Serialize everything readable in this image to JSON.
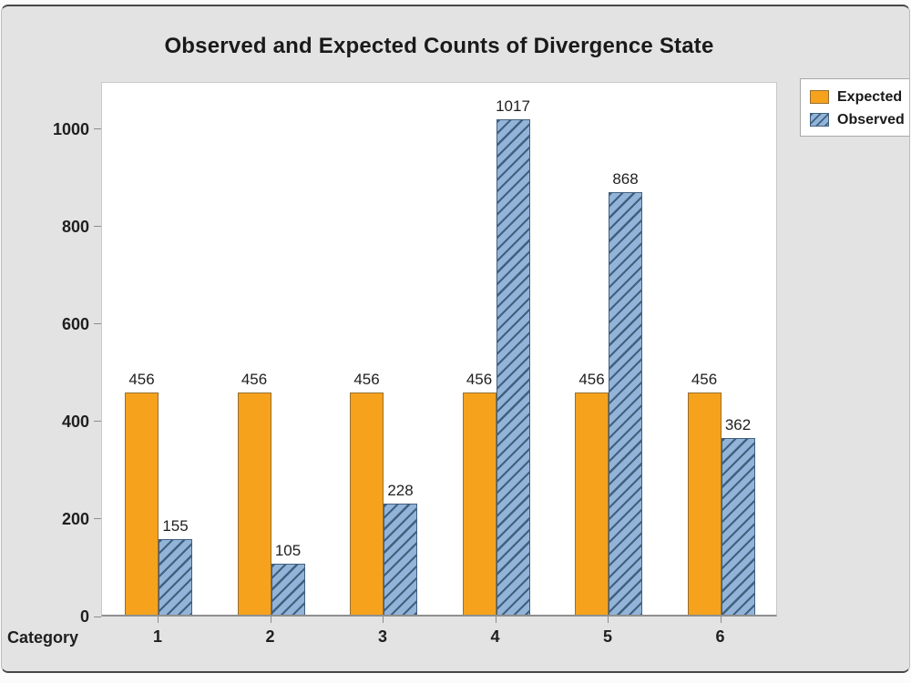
{
  "chart_data": {
    "type": "bar",
    "title": "Observed and Expected Counts of Divergence State",
    "xlabel": "Category",
    "ylabel": "",
    "categories": [
      "1",
      "2",
      "3",
      "4",
      "5",
      "6"
    ],
    "series": [
      {
        "name": "Expected",
        "values": [
          456,
          456,
          456,
          456,
          456,
          456
        ],
        "fill": "#F6A21D",
        "border": "#957032",
        "pattern": "solid"
      },
      {
        "name": "Observed",
        "values": [
          155,
          105,
          228,
          1017,
          868,
          362
        ],
        "fill": "#92B4D8",
        "border": "#41607F",
        "pattern": "diagonal-hatch",
        "hatch_color": "#41607F"
      }
    ],
    "ylim": [
      0,
      1097
    ],
    "yticks": [
      0,
      200,
      400,
      600,
      800,
      1000
    ],
    "grid": false,
    "value_labels": true,
    "legend_position": "top-right"
  },
  "colors": {
    "canvas_background": "#e3e3e3",
    "plot_background": "#ffffff",
    "plot_frame": "#c9c9c9",
    "axis_line": "#8f8f8f",
    "text": "#1f1f1f",
    "legend_border": "#a8a8a8",
    "window_border": "#474747"
  }
}
